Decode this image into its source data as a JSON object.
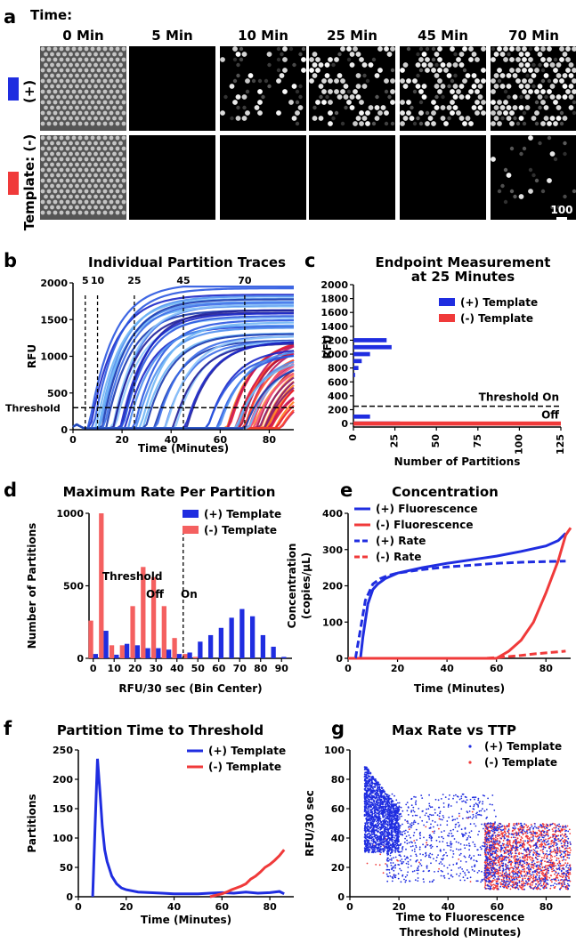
{
  "panel_labels": {
    "a": "a",
    "b": "b",
    "c": "c",
    "d": "d",
    "e": "e",
    "f": "f",
    "g": "g"
  },
  "colors": {
    "plus": "#1f2de0",
    "minus": "#f03a3a",
    "minus_bar": "#f46060"
  },
  "panel_a": {
    "time_label": "Time:",
    "times": [
      "0 Min",
      "5 Min",
      "10 Min",
      "25 Min",
      "45 Min",
      "70 Min"
    ],
    "row_label_plus": "(+)",
    "row_label_minus": "Template: (-)",
    "scale_bar_label": "100",
    "plus_row_bright_fraction": [
      1.0,
      0.0,
      0.12,
      0.32,
      0.42,
      0.55
    ],
    "minus_row_bright_fraction": [
      1.0,
      0.0,
      0.0,
      0.0,
      0.0,
      0.04
    ]
  },
  "chart_data": [
    {
      "id": "b",
      "type": "line",
      "title": "Individual Partition Traces",
      "xlabel": "Time (Minutes)",
      "ylabel": "RFU",
      "xlim": [
        0,
        90
      ],
      "ylim": [
        0,
        2000
      ],
      "xticks": [
        0,
        20,
        40,
        60,
        80
      ],
      "yticks": [
        0,
        500,
        1000,
        1500,
        2000
      ],
      "marker_times": [
        5,
        10,
        25,
        45,
        70
      ],
      "threshold_label": "Threshold",
      "threshold_value": 300,
      "series": [
        {
          "values_description_group": "plus",
          "onset_minutes": [
            6,
            8,
            9,
            10,
            12,
            14,
            16,
            18,
            20,
            22,
            25,
            28,
            32,
            36,
            40,
            45,
            52,
            58,
            64,
            70
          ],
          "plateau_rfu": [
            1900,
            1850,
            1800,
            1750,
            1700,
            1650,
            1600,
            1550,
            1500,
            1450,
            1400,
            1350,
            1300,
            1250,
            1200,
            1150,
            1100,
            1050,
            1000,
            950
          ]
        },
        {
          "values_description_group": "minus",
          "onset_minutes": [
            62,
            65,
            68,
            70,
            72,
            74,
            76,
            78,
            80,
            82
          ],
          "plateau_rfu": [
            1300,
            1200,
            1150,
            1100,
            1000,
            950,
            900,
            850,
            700,
            600
          ]
        }
      ]
    },
    {
      "id": "c",
      "type": "bar",
      "title_line1": "Endpoint Measurement",
      "title_line2": "at 25 Minutes",
      "xlabel": "Number of Partitions",
      "ylabel": "RFU",
      "xlim": [
        0,
        125
      ],
      "ylim": [
        -50,
        2000
      ],
      "xticks": [
        0,
        25,
        50,
        75,
        100,
        125
      ],
      "yticks": [
        0,
        200,
        400,
        600,
        800,
        1000,
        1200,
        1400,
        1600,
        1800,
        2000
      ],
      "threshold_on_label": "Threshold On",
      "off_label": "Off",
      "threshold_value": 250,
      "legend": [
        "(+) Template",
        "(-) Template"
      ],
      "series": [
        {
          "name": "(+) Template",
          "bins_rfu": [
            0,
            100,
            700,
            800,
            900,
            1000,
            1100,
            1200
          ],
          "counts": [
            28,
            10,
            1,
            3,
            5,
            10,
            23,
            20
          ]
        },
        {
          "name": "(-) Template",
          "bins_rfu": [
            0
          ],
          "counts": [
            125
          ]
        }
      ]
    },
    {
      "id": "d",
      "type": "bar",
      "title": "Maximum Rate Per Partition",
      "xlabel": "RFU/30 sec  (Bin Center)",
      "ylabel": "Number of Partitions",
      "xlim": [
        -2,
        95
      ],
      "ylim": [
        0,
        1000
      ],
      "xticks": [
        0,
        10,
        20,
        30,
        40,
        50,
        60,
        70,
        80,
        90
      ],
      "yticks": [
        0,
        500,
        1000
      ],
      "threshold_label": "Threshold",
      "off_label": "Off",
      "on_label": "On",
      "threshold_value": 43,
      "legend": [
        "(+) Template",
        "(-) Template"
      ],
      "categories": [
        0,
        5,
        10,
        15,
        20,
        25,
        30,
        35,
        40,
        45,
        50,
        55,
        60,
        65,
        70,
        75,
        80,
        85,
        90
      ],
      "series": [
        {
          "name": "(+) Template",
          "values": [
            30,
            190,
            25,
            100,
            90,
            70,
            70,
            60,
            30,
            40,
            115,
            160,
            210,
            280,
            340,
            290,
            160,
            80,
            10
          ]
        },
        {
          "name": "(-) Template",
          "values": [
            260,
            1000,
            90,
            90,
            360,
            630,
            560,
            360,
            140,
            30,
            10,
            0,
            0,
            0,
            0,
            0,
            0,
            0,
            0
          ]
        }
      ]
    },
    {
      "id": "e",
      "type": "line",
      "title": "Concentration",
      "xlabel": "Time  (Minutes)",
      "ylabel_line1": "Concentration",
      "ylabel_line2": "(copies/µL)",
      "xlim": [
        0,
        90
      ],
      "ylim": [
        0,
        400
      ],
      "xticks": [
        0,
        20,
        40,
        60,
        80
      ],
      "yticks": [
        0,
        100,
        200,
        300,
        400
      ],
      "legend": [
        "(+) Fluorescence",
        "(-)  Fluorescence",
        "(+) Rate",
        "(-)  Rate"
      ],
      "series": [
        {
          "name": "(+) Fluorescence",
          "x": [
            0,
            5,
            6,
            8,
            10,
            12,
            15,
            20,
            30,
            40,
            50,
            60,
            70,
            80,
            85,
            88
          ],
          "y": [
            0,
            0,
            60,
            150,
            190,
            205,
            220,
            235,
            250,
            262,
            272,
            282,
            295,
            310,
            325,
            345
          ]
        },
        {
          "name": "(-)  Fluorescence",
          "x": [
            0,
            60,
            65,
            70,
            75,
            80,
            85,
            88,
            90
          ],
          "y": [
            0,
            0,
            20,
            50,
            100,
            180,
            270,
            340,
            360
          ]
        },
        {
          "name": "(+) Rate",
          "x": [
            3,
            5,
            7,
            10,
            13,
            16,
            20,
            30,
            40,
            50,
            60,
            70,
            80,
            88
          ],
          "y": [
            0,
            80,
            160,
            205,
            220,
            228,
            235,
            245,
            252,
            257,
            262,
            265,
            267,
            268
          ]
        },
        {
          "name": "(-)  Rate",
          "x": [
            0,
            55,
            60,
            65,
            70,
            75,
            80,
            85,
            88
          ],
          "y": [
            0,
            0,
            2,
            5,
            8,
            12,
            15,
            18,
            20
          ]
        }
      ]
    },
    {
      "id": "f",
      "type": "line",
      "title": "Partition Time to Threshold",
      "xlabel": "Time (Minutes)",
      "ylabel": "Partitions",
      "xlim": [
        0,
        90
      ],
      "ylim": [
        0,
        250
      ],
      "xticks": [
        0,
        20,
        40,
        60,
        80
      ],
      "yticks": [
        0,
        50,
        100,
        150,
        200,
        250
      ],
      "legend": [
        "(+) Template",
        "(-) Template"
      ],
      "series": [
        {
          "name": "(+) Template",
          "x": [
            6,
            7,
            8,
            9,
            10,
            11,
            12,
            14,
            16,
            18,
            20,
            25,
            30,
            35,
            40,
            45,
            50,
            55,
            60,
            65,
            70,
            75,
            80,
            84,
            86
          ],
          "y": [
            0,
            120,
            235,
            180,
            120,
            80,
            60,
            35,
            22,
            15,
            12,
            8,
            7,
            6,
            5,
            5,
            5,
            6,
            7,
            6,
            8,
            6,
            7,
            9,
            5
          ]
        },
        {
          "name": "(-) Template",
          "x": [
            55,
            58,
            60,
            62,
            64,
            66,
            68,
            70,
            72,
            74,
            76,
            78,
            80,
            82,
            84,
            86
          ],
          "y": [
            0,
            3,
            5,
            8,
            12,
            15,
            18,
            22,
            30,
            35,
            42,
            50,
            55,
            62,
            70,
            80
          ]
        }
      ]
    },
    {
      "id": "g",
      "type": "scatter",
      "title": "Max Rate vs TTP",
      "xlabel_line1": "Time to Fluorescence",
      "xlabel_line2": "Threshold (Minutes)",
      "ylabel": "RFU/30 sec",
      "xlim": [
        0,
        90
      ],
      "ylim": [
        0,
        100
      ],
      "xticks": [
        0,
        20,
        40,
        60,
        80
      ],
      "yticks": [
        0,
        20,
        40,
        60,
        80,
        100
      ],
      "legend": [
        "(+) Template",
        "(-)  Template"
      ],
      "series": [
        {
          "name": "(+) Template",
          "clusters": [
            {
              "x": [
                6,
                20
              ],
              "y": [
                30,
                90
              ],
              "n": 1800
            },
            {
              "x": [
                15,
                60
              ],
              "y": [
                10,
                70
              ],
              "n": 700
            },
            {
              "x": [
                55,
                90
              ],
              "y": [
                5,
                50
              ],
              "n": 700
            }
          ]
        },
        {
          "name": "(-)  Template",
          "clusters": [
            {
              "x": [
                55,
                90
              ],
              "y": [
                5,
                50
              ],
              "n": 1400
            },
            {
              "x": [
                5,
                50
              ],
              "y": [
                10,
                60
              ],
              "n": 30
            }
          ]
        }
      ]
    }
  ]
}
